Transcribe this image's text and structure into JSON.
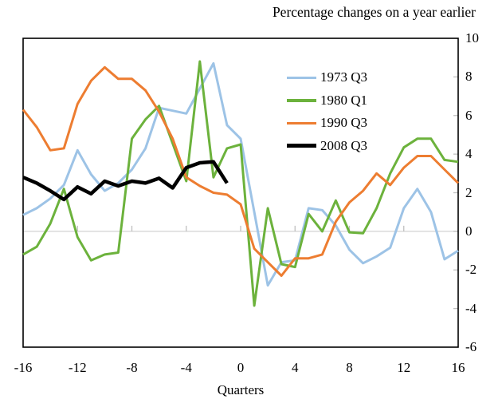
{
  "title": "Percentage changes on a year earlier",
  "xlabel": "Quarters",
  "chart_data": {
    "type": "line",
    "x": [
      -16,
      -15,
      -14,
      -13,
      -12,
      -11,
      -10,
      -9,
      -8,
      -7,
      -6,
      -5,
      -4,
      -3,
      -2,
      -1,
      0,
      1,
      2,
      3,
      4,
      5,
      6,
      7,
      8,
      9,
      10,
      11,
      12,
      13,
      14,
      15,
      16
    ],
    "xlim": [
      -16,
      16
    ],
    "ylim": [
      -6,
      10
    ],
    "x_ticks": [
      -16,
      -12,
      -8,
      -4,
      0,
      4,
      8,
      12,
      16
    ],
    "y_ticks": [
      10,
      8,
      6,
      4,
      2,
      0,
      -2,
      -4,
      -6
    ],
    "grid": "zero-line-only",
    "legend_position": "top-right-inside",
    "series": [
      {
        "name": "1973 Q3",
        "color": "#9DC3E6",
        "width": 3,
        "x": [
          -16,
          -15,
          -14,
          -13,
          -12,
          -11,
          -10,
          -9,
          -8,
          -7,
          -6,
          -5,
          -4,
          -3,
          -2,
          -1,
          0,
          1,
          2,
          3,
          4,
          5,
          6,
          7,
          8,
          9,
          10,
          11,
          12,
          13,
          14,
          15,
          16
        ],
        "values": [
          0.85,
          1.2,
          1.7,
          2.4,
          4.2,
          2.95,
          2.1,
          2.5,
          3.2,
          4.3,
          6.4,
          6.25,
          6.1,
          7.4,
          8.7,
          5.5,
          4.8,
          1.0,
          -2.8,
          -1.6,
          -1.5,
          1.2,
          1.1,
          0.3,
          -0.95,
          -1.65,
          -1.3,
          -0.85,
          1.2,
          2.2,
          1.0,
          -1.45,
          -1.0
        ]
      },
      {
        "name": "1980 Q1",
        "color": "#6CB23C",
        "width": 3,
        "x": [
          -16,
          -15,
          -14,
          -13,
          -12,
          -11,
          -10,
          -9,
          -8,
          -7,
          -6,
          -5,
          -4,
          -3,
          -2,
          -1,
          0,
          1,
          2,
          3,
          4,
          5,
          6,
          7,
          8,
          9,
          10,
          11,
          12,
          13,
          14,
          15,
          16
        ],
        "values": [
          -1.2,
          -0.8,
          0.4,
          2.2,
          -0.3,
          -1.5,
          -1.2,
          -1.1,
          4.8,
          5.8,
          6.5,
          4.55,
          2.6,
          8.8,
          2.8,
          4.3,
          4.5,
          -3.85,
          1.2,
          -1.7,
          -1.85,
          0.9,
          0.0,
          1.6,
          -0.05,
          -0.1,
          1.2,
          3.0,
          4.35,
          4.8,
          4.8,
          3.7,
          3.6
        ]
      },
      {
        "name": "1990 Q3",
        "color": "#ED7D31",
        "width": 3,
        "x": [
          -16,
          -15,
          -14,
          -13,
          -12,
          -11,
          -10,
          -9,
          -8,
          -7,
          -6,
          -5,
          -4,
          -3,
          -2,
          -1,
          0,
          1,
          2,
          3,
          4,
          5,
          6,
          7,
          8,
          9,
          10,
          11,
          12,
          13,
          14,
          15,
          16
        ],
        "values": [
          6.3,
          5.4,
          4.2,
          4.3,
          6.6,
          7.8,
          8.5,
          7.9,
          7.9,
          7.3,
          6.2,
          4.8,
          2.8,
          2.35,
          2.0,
          1.9,
          1.4,
          -0.9,
          -1.6,
          -2.3,
          -1.4,
          -1.4,
          -1.2,
          0.5,
          1.5,
          2.1,
          3.0,
          2.4,
          3.3,
          3.9,
          3.9,
          3.2,
          2.5
        ]
      },
      {
        "name": "2008 Q3",
        "color": "#000000",
        "width": 4.5,
        "x": [
          -16,
          -15,
          -14,
          -13,
          -12,
          -11,
          -10,
          -9,
          -8,
          -7,
          -6,
          -5,
          -4,
          -3,
          -2,
          -1
        ],
        "values": [
          2.8,
          2.5,
          2.1,
          1.65,
          2.3,
          1.95,
          2.6,
          2.35,
          2.6,
          2.5,
          2.75,
          2.25,
          3.3,
          3.55,
          3.6,
          2.5
        ]
      }
    ]
  }
}
